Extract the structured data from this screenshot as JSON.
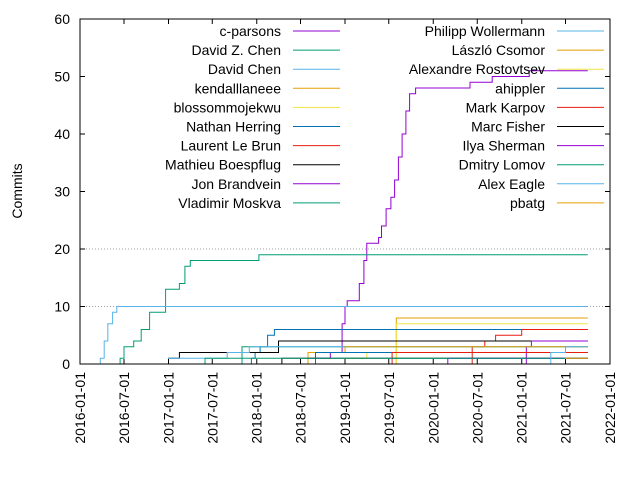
{
  "chart_data": {
    "type": "line",
    "title": "",
    "xlabel": "",
    "ylabel": "Commits",
    "x_axis_type": "date",
    "xlim": [
      "2016-01-01",
      "2022-01-01"
    ],
    "ylim": [
      0,
      60
    ],
    "x_ticks": [
      "2016-01-01",
      "2016-07-01",
      "2017-01-01",
      "2017-07-01",
      "2018-01-01",
      "2018-07-01",
      "2019-01-01",
      "2019-07-01",
      "2020-01-01",
      "2020-07-01",
      "2021-01-01",
      "2021-07-01",
      "2022-01-01"
    ],
    "y_ticks": [
      "0",
      "10",
      "20",
      "30",
      "40",
      "50",
      "60"
    ],
    "grid": "horizontal dotted lines at 10, 20 and 60",
    "legend_placement": "top, two columns",
    "series": [
      {
        "name": "c-parsons",
        "color": "#9400d3",
        "points": [
          [
            "2018-01-20",
            0
          ],
          [
            "2018-06-01",
            0
          ],
          [
            "2018-08-01",
            1
          ],
          [
            "2018-11-01",
            2
          ],
          [
            "2018-12-20",
            7
          ],
          [
            "2019-01-01",
            10
          ],
          [
            "2019-01-10",
            11
          ],
          [
            "2019-02-01",
            11
          ],
          [
            "2019-03-01",
            14
          ],
          [
            "2019-03-20",
            18
          ],
          [
            "2019-04-01",
            21
          ],
          [
            "2019-05-01",
            21
          ],
          [
            "2019-05-20",
            22
          ],
          [
            "2019-06-01",
            24
          ],
          [
            "2019-06-20",
            27
          ],
          [
            "2019-07-10",
            29
          ],
          [
            "2019-07-25",
            32
          ],
          [
            "2019-08-10",
            36
          ],
          [
            "2019-08-25",
            40
          ],
          [
            "2019-09-10",
            44
          ],
          [
            "2019-09-25",
            47
          ],
          [
            "2019-10-20",
            48
          ],
          [
            "2020-01-01",
            48
          ],
          [
            "2020-03-01",
            48
          ],
          [
            "2020-06-01",
            49
          ],
          [
            "2020-09-01",
            50
          ],
          [
            "2021-01-01",
            50
          ],
          [
            "2021-02-01",
            51
          ],
          [
            "2021-05-01",
            51
          ],
          [
            "2021-07-01",
            51
          ],
          [
            "2021-10-01",
            51
          ]
        ]
      },
      {
        "name": "David Z. Chen",
        "color": "#009e73",
        "points": [
          [
            "2016-03-20",
            0
          ],
          [
            "2016-06-15",
            1
          ],
          [
            "2016-07-01",
            3
          ],
          [
            "2016-08-10",
            4
          ],
          [
            "2016-09-10",
            6
          ],
          [
            "2016-10-15",
            9
          ],
          [
            "2016-12-01",
            9
          ],
          [
            "2016-12-20",
            13
          ],
          [
            "2017-02-01",
            13
          ],
          [
            "2017-02-15",
            14
          ],
          [
            "2017-03-10",
            17
          ],
          [
            "2017-04-01",
            18
          ],
          [
            "2017-09-01",
            18
          ],
          [
            "2018-01-01",
            18
          ],
          [
            "2018-01-10",
            19
          ],
          [
            "2018-09-01",
            19
          ],
          [
            "2020-01-01",
            19
          ],
          [
            "2021-10-01",
            19
          ]
        ]
      },
      {
        "name": "David Chen",
        "color": "#56b4e9",
        "points": [
          [
            "2016-03-20",
            0
          ],
          [
            "2016-03-25",
            1
          ],
          [
            "2016-04-10",
            4
          ],
          [
            "2016-04-25",
            7
          ],
          [
            "2016-05-15",
            9
          ],
          [
            "2016-06-01",
            10
          ],
          [
            "2018-01-01",
            10
          ],
          [
            "2020-01-01",
            10
          ],
          [
            "2021-10-01",
            10
          ]
        ]
      },
      {
        "name": "kendalllaneee",
        "color": "#e69f00",
        "points": [
          [
            "2019-07-25",
            0
          ],
          [
            "2019-08-01",
            8
          ],
          [
            "2020-06-01",
            8
          ],
          [
            "2021-10-01",
            8
          ]
        ]
      },
      {
        "name": "blossommojekwu",
        "color": "#f0e442",
        "points": [
          [
            "2019-07-25",
            0
          ],
          [
            "2019-08-01",
            7
          ],
          [
            "2020-06-01",
            7
          ],
          [
            "2021-10-01",
            7
          ]
        ]
      },
      {
        "name": "Nathan Herring",
        "color": "#0072b2",
        "points": [
          [
            "2017-07-01",
            0
          ],
          [
            "2017-12-10",
            1
          ],
          [
            "2017-12-25",
            2
          ],
          [
            "2018-01-15",
            3
          ],
          [
            "2018-02-15",
            5
          ],
          [
            "2018-03-15",
            6
          ],
          [
            "2020-01-01",
            6
          ],
          [
            "2021-10-01",
            6
          ]
        ]
      },
      {
        "name": "Laurent Le Brun",
        "color": "#e51e10",
        "points": [
          [
            "2020-06-01",
            0
          ],
          [
            "2020-06-10",
            3
          ],
          [
            "2020-08-01",
            4
          ],
          [
            "2020-09-15",
            5
          ],
          [
            "2020-12-10",
            5
          ],
          [
            "2021-01-01",
            6
          ],
          [
            "2021-10-01",
            6
          ]
        ]
      },
      {
        "name": "Mathieu Boespflug",
        "color": "#000000",
        "points": [
          [
            "2016-11-01",
            0
          ],
          [
            "2017-01-01",
            1
          ],
          [
            "2017-02-15",
            2
          ],
          [
            "2017-05-01",
            2
          ],
          [
            "2018-03-20",
            2
          ],
          [
            "2018-04-01",
            4
          ],
          [
            "2019-01-01",
            4
          ],
          [
            "2020-01-01",
            4
          ],
          [
            "2021-10-01",
            4
          ]
        ]
      },
      {
        "name": "Jon Brandvein",
        "color": "#9400d3",
        "points": [
          [
            "2020-12-01",
            0
          ],
          [
            "2021-01-20",
            3
          ],
          [
            "2021-02-10",
            4
          ],
          [
            "2021-10-01",
            4
          ]
        ]
      },
      {
        "name": "Vladimir Moskva",
        "color": "#009e73",
        "points": [
          [
            "2017-07-01",
            0
          ],
          [
            "2017-11-01",
            3
          ],
          [
            "2018-02-01",
            3
          ],
          [
            "2021-10-01",
            3
          ]
        ]
      },
      {
        "name": "Philipp Wollermann",
        "color": "#56b4e9",
        "points": [
          [
            "2016-10-01",
            0
          ],
          [
            "2017-01-01",
            1
          ],
          [
            "2017-05-01",
            1
          ],
          [
            "2017-09-01",
            2
          ],
          [
            "2017-12-01",
            3
          ],
          [
            "2019-01-01",
            3
          ],
          [
            "2021-10-01",
            3
          ]
        ]
      },
      {
        "name": "László Csomor",
        "color": "#e69f00",
        "points": [
          [
            "2018-07-01",
            0
          ],
          [
            "2018-08-01",
            2
          ],
          [
            "2018-12-01",
            2
          ],
          [
            "2019-01-01",
            3
          ],
          [
            "2020-01-01",
            3
          ],
          [
            "2021-10-01",
            3
          ]
        ]
      },
      {
        "name": "Alexandre Rostovtsev",
        "color": "#f0e442",
        "points": [
          [
            "2018-07-01",
            0
          ],
          [
            "2019-01-01",
            1
          ],
          [
            "2019-04-01",
            2
          ],
          [
            "2020-01-01",
            2
          ],
          [
            "2021-10-01",
            2
          ]
        ]
      },
      {
        "name": "ahippler",
        "color": "#0072b2",
        "points": [
          [
            "2018-08-01",
            0
          ],
          [
            "2018-09-01",
            2
          ],
          [
            "2020-01-01",
            2
          ],
          [
            "2021-10-01",
            2
          ]
        ]
      },
      {
        "name": "Mark Karpov",
        "color": "#e51e10",
        "points": [
          [
            "2019-06-01",
            0
          ],
          [
            "2019-07-15",
            2
          ],
          [
            "2020-06-01",
            2
          ],
          [
            "2021-10-01",
            2
          ]
        ]
      },
      {
        "name": "Marc Fisher",
        "color": "#000000",
        "points": [
          [
            "2018-03-01",
            0
          ],
          [
            "2018-04-15",
            1
          ],
          [
            "2019-01-01",
            1
          ],
          [
            "2021-10-01",
            1
          ]
        ]
      },
      {
        "name": "Ilya Sherman",
        "color": "#9400d3",
        "points": [
          [
            "2020-01-01",
            0
          ],
          [
            "2020-03-01",
            1
          ],
          [
            "2021-10-01",
            1
          ]
        ]
      },
      {
        "name": "Dmitry Lomov",
        "color": "#009e73",
        "points": [
          [
            "2017-03-01",
            0
          ],
          [
            "2017-06-01",
            1
          ],
          [
            "2018-06-01",
            1
          ],
          [
            "2021-10-01",
            1
          ]
        ]
      },
      {
        "name": "Alex Eagle",
        "color": "#56b4e9",
        "points": [
          [
            "2021-03-01",
            0
          ],
          [
            "2021-05-01",
            2
          ],
          [
            "2021-07-01",
            3
          ],
          [
            "2021-10-01",
            3
          ]
        ]
      },
      {
        "name": "pbatg",
        "color": "#e69f00",
        "points": [
          [
            "2021-05-01",
            0
          ],
          [
            "2021-07-01",
            1
          ],
          [
            "2021-10-01",
            1
          ]
        ]
      }
    ]
  }
}
